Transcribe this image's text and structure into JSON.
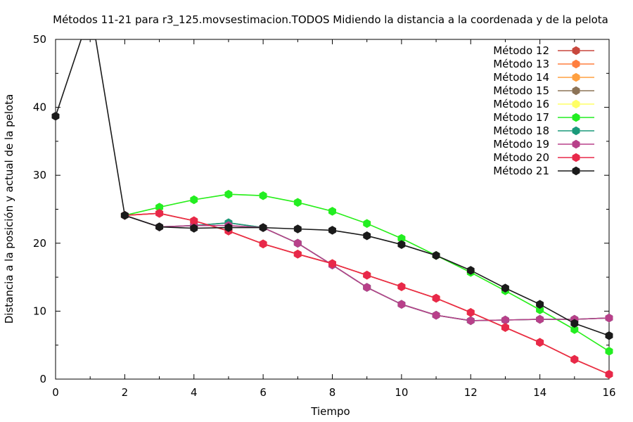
{
  "chart_data": {
    "type": "line",
    "title": "Métodos 11-21 para r3_125.movsestimacion.TODOS Midiendo la distancia a la coordenada y de la pelota",
    "xlabel": "Tiempo",
    "ylabel": "Distancia a la posición y actual de la pelota",
    "xlim": [
      0,
      16
    ],
    "ylim": [
      0,
      50
    ],
    "xticks": [
      0,
      2,
      4,
      6,
      8,
      10,
      12,
      14,
      16
    ],
    "yticks": [
      0,
      10,
      20,
      30,
      40,
      50
    ],
    "grid": false,
    "legend_position": "top-right",
    "series": [
      {
        "name": "Método 12",
        "color": "#c8473d",
        "marker": "circle",
        "x": [
          2,
          3,
          4,
          5,
          6,
          7,
          8,
          9,
          10,
          11,
          12,
          13,
          14,
          15,
          16
        ],
        "y": [
          24.1,
          24.4,
          23.3,
          21.8,
          19.9,
          18.4,
          17.0,
          15.3,
          13.6,
          11.9,
          9.8,
          7.6,
          5.4,
          2.9,
          0.7
        ]
      },
      {
        "name": "Método 13",
        "color": "#ff7f3f",
        "marker": "circle",
        "x": [
          2,
          3,
          4,
          5,
          6,
          7,
          8,
          9,
          10,
          11,
          12,
          13,
          14,
          15,
          16
        ],
        "y": [
          24.1,
          24.4,
          23.3,
          21.8,
          19.9,
          18.4,
          17.0,
          15.3,
          13.6,
          11.9,
          9.8,
          7.6,
          5.4,
          2.9,
          0.7
        ]
      },
      {
        "name": "Método 14",
        "color": "#ffa040",
        "marker": "circle",
        "x": [
          2,
          3,
          4,
          5,
          6,
          7,
          8,
          9,
          10,
          11,
          12,
          13,
          14,
          15,
          16
        ],
        "y": [
          24.1,
          24.4,
          23.3,
          21.8,
          19.9,
          18.4,
          17.0,
          15.3,
          13.6,
          11.9,
          9.8,
          7.6,
          5.4,
          2.9,
          0.7
        ]
      },
      {
        "name": "Método 15",
        "color": "#8c7356",
        "marker": "circle",
        "x": [
          2,
          3,
          4,
          5,
          6,
          7,
          8,
          9,
          10,
          11,
          12,
          13,
          14,
          15,
          16
        ],
        "y": [
          24.1,
          22.4,
          22.6,
          23.0,
          22.3,
          20.0,
          16.8,
          13.5,
          11.0,
          9.4,
          8.6,
          8.7,
          8.8,
          8.8,
          9.0
        ]
      },
      {
        "name": "Método 16",
        "color": "#ffff66",
        "marker": "circle",
        "x": [
          2,
          3,
          4,
          5,
          6,
          7,
          8,
          9,
          10,
          11,
          12,
          13,
          14,
          15,
          16
        ],
        "y": [
          24.1,
          25.3,
          26.4,
          27.2,
          27.0,
          26.0,
          24.7,
          22.9,
          20.7,
          18.2,
          15.7,
          13.0,
          10.2,
          7.3,
          4.1
        ]
      },
      {
        "name": "Método 17",
        "color": "#22ee22",
        "marker": "circle",
        "x": [
          2,
          3,
          4,
          5,
          6,
          7,
          8,
          9,
          10,
          11,
          12,
          13,
          14,
          15,
          16
        ],
        "y": [
          24.1,
          25.3,
          26.4,
          27.2,
          27.0,
          26.0,
          24.7,
          22.9,
          20.7,
          18.2,
          15.7,
          13.0,
          10.2,
          7.3,
          4.1
        ]
      },
      {
        "name": "Método 18",
        "color": "#1a9a7a",
        "marker": "circle",
        "x": [
          2,
          3,
          4,
          5,
          6,
          7,
          8,
          9,
          10,
          11,
          12,
          13,
          14,
          15,
          16
        ],
        "y": [
          24.1,
          22.4,
          22.6,
          23.0,
          22.3,
          20.0,
          16.8,
          13.5,
          11.0,
          9.4,
          8.6,
          8.7,
          8.8,
          8.8,
          9.0
        ]
      },
      {
        "name": "Método 19",
        "color": "#b8408a",
        "marker": "circle",
        "x": [
          2,
          3,
          4,
          5,
          6,
          7,
          8,
          9,
          10,
          11,
          12,
          13,
          14,
          15,
          16
        ],
        "y": [
          24.1,
          22.4,
          22.6,
          22.6,
          22.3,
          20.0,
          16.8,
          13.5,
          11.0,
          9.4,
          8.6,
          8.7,
          8.8,
          8.8,
          9.0
        ]
      },
      {
        "name": "Método 20",
        "color": "#e8284a",
        "marker": "circle",
        "x": [
          2,
          3,
          4,
          5,
          6,
          7,
          8,
          9,
          10,
          11,
          12,
          13,
          14,
          15,
          16
        ],
        "y": [
          24.1,
          24.4,
          23.3,
          21.8,
          19.9,
          18.4,
          17.0,
          15.3,
          13.6,
          11.9,
          9.8,
          7.6,
          5.4,
          2.9,
          0.7
        ]
      },
      {
        "name": "Método 21",
        "color": "#1a1a1a",
        "marker": "circle",
        "x": [
          0,
          0.74,
          1.16,
          2,
          3,
          4,
          5,
          6,
          7,
          8,
          9,
          10,
          11,
          12,
          13,
          14,
          15,
          16
        ],
        "y": [
          38.7,
          50,
          50,
          24.1,
          22.4,
          22.2,
          22.3,
          22.3,
          22.1,
          21.9,
          21.1,
          19.8,
          18.2,
          16.0,
          13.4,
          11.0,
          8.2,
          6.4
        ],
        "marker_skip": [
          1,
          2
        ]
      }
    ]
  }
}
